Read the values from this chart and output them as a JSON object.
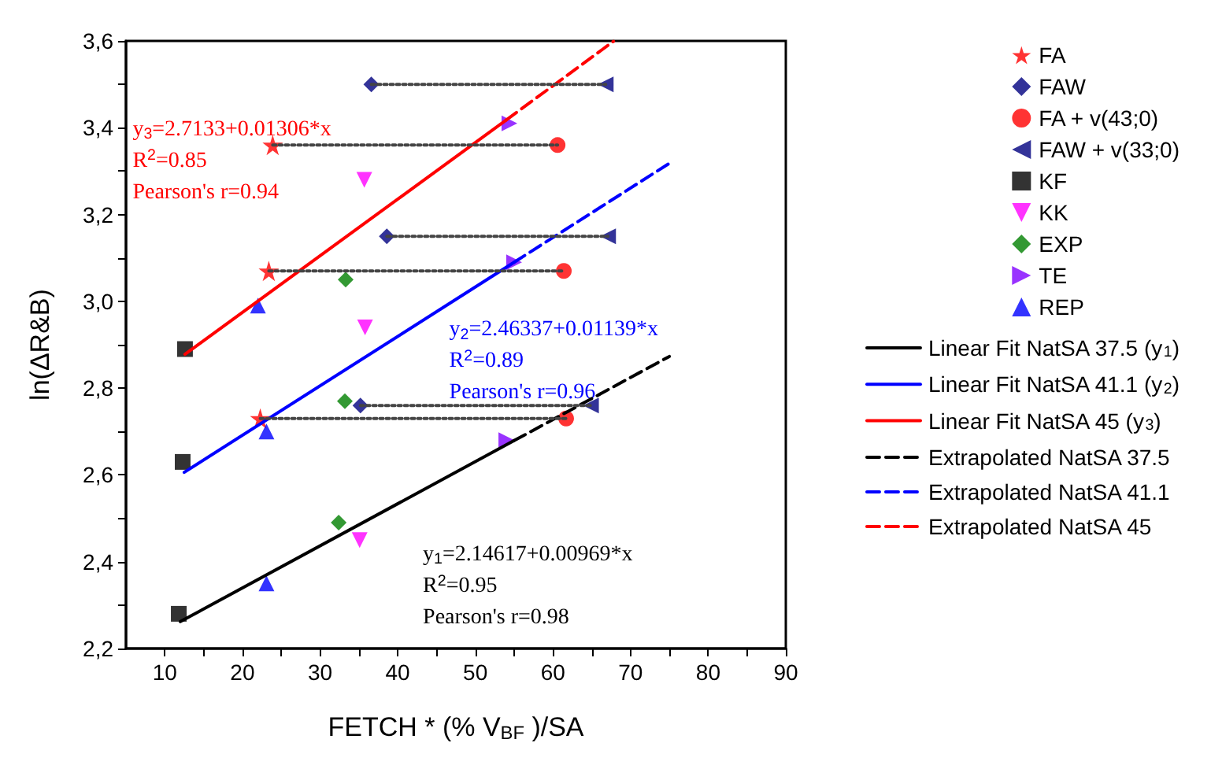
{
  "chart_data": {
    "type": "scatter",
    "xlabel": "FETCH * (% V$_{BF}$ )/SA",
    "ylabel": "ln(ΔR&B)",
    "xlim": [
      5,
      90
    ],
    "xticks": [
      10,
      {
        "value": 15,
        "label": null
      },
      20,
      {
        "value": 25,
        "label": null
      },
      30,
      {
        "value": 35,
        "label": null
      },
      40,
      {
        "value": 45,
        "label": null
      },
      50,
      {
        "value": 55,
        "label": null
      },
      60,
      {
        "value": 65,
        "label": null
      },
      70,
      {
        "value": 75,
        "label": null
      },
      80,
      {
        "value": 85,
        "label": null
      },
      90
    ],
    "ylim": [
      2.2,
      3.6
    ],
    "yticks": [
      {
        "value": 2.2,
        "label": "2,2"
      },
      {
        "value": 2.3,
        "label": null
      },
      {
        "value": 2.4,
        "label": "2,4"
      },
      {
        "value": 2.5,
        "label": null
      },
      {
        "value": 2.6,
        "label": "2,6"
      },
      {
        "value": 2.7,
        "label": null
      },
      {
        "value": 2.8,
        "label": "2,8"
      },
      {
        "value": 2.9,
        "label": null
      },
      {
        "value": 3.0,
        "label": "3,0"
      },
      {
        "value": 3.1,
        "label": null
      },
      {
        "value": 3.2,
        "label": "3,2"
      },
      {
        "value": 3.3,
        "label": null
      },
      {
        "value": 3.4,
        "label": "3,4"
      },
      {
        "value": 3.5,
        "label": null
      },
      {
        "value": 3.6,
        "label": "3,6"
      }
    ],
    "grid": false,
    "legend": "right",
    "series": [
      {
        "name": "FA",
        "color": "#ff0000",
        "marker": "star",
        "x": [
          23.9,
          23.4,
          22.3
        ],
        "values": [
          3.36,
          3.07,
          2.73
        ]
      },
      {
        "name": "FAW",
        "color": "#000080",
        "marker": "diamond",
        "x": [
          36.6,
          38.6,
          35.2
        ],
        "values": [
          3.5,
          3.15,
          2.76
        ]
      },
      {
        "name": "FA + v(43;0)",
        "color": "#ff0000",
        "marker": "circle",
        "x": [
          60.6,
          61.4,
          61.7
        ],
        "values": [
          3.36,
          3.07,
          2.73
        ]
      },
      {
        "name": "FAW + v(33;0)",
        "color": "#000080",
        "marker": "triangle-left",
        "x": [
          66.8,
          67.1,
          64.9
        ],
        "values": [
          3.5,
          3.15,
          2.76
        ]
      },
      {
        "name": "KF",
        "color": "#000000",
        "marker": "square",
        "x": [
          12.6,
          12.3,
          11.8
        ],
        "values": [
          2.89,
          2.63,
          2.28
        ]
      },
      {
        "name": "KK",
        "color": "#ff00ff",
        "marker": "triangle-down",
        "x": [
          35.7,
          35.8,
          35.1
        ],
        "values": [
          3.28,
          2.94,
          2.45
        ]
      },
      {
        "name": "EXP",
        "color": "#008000",
        "marker": "diamond",
        "x": [
          33.3,
          33.2,
          32.4
        ],
        "values": [
          3.05,
          2.77,
          2.49
        ]
      },
      {
        "name": "TE",
        "color": "#8000ff",
        "marker": "triangle-right",
        "x": [
          54.4,
          55.0,
          54.0
        ],
        "values": [
          3.41,
          3.09,
          2.68
        ]
      },
      {
        "name": "REP",
        "color": "#0000ff",
        "marker": "triangle",
        "x": [
          22.0,
          23.1,
          23.1
        ],
        "values": [
          2.99,
          2.7,
          2.35
        ]
      },
      {
        "name": "Linear Fit NatSA 37.5 (y$_{1}$)",
        "type": "line",
        "color": "#000000",
        "marker": "none",
        "line_style": "solid",
        "x": [
          12,
          55
        ],
        "values": [
          2.262,
          2.679
        ]
      },
      {
        "name": "Linear Fit NatSA 41.1 (y$_{2}$)",
        "type": "line",
        "color": "#0000ff",
        "marker": "none",
        "line_style": "solid",
        "x": [
          12.5,
          55
        ],
        "values": [
          2.606,
          3.09
        ]
      },
      {
        "name": "Linear Fit NatSA 45 (y$_{3}$)",
        "type": "line",
        "color": "#ff0000",
        "marker": "none",
        "line_style": "solid",
        "x": [
          12.6,
          54
        ],
        "values": [
          2.878,
          3.418
        ]
      },
      {
        "name": "Extrapolated NatSA 37.5",
        "type": "line",
        "color": "#000000",
        "marker": "none",
        "line_style": "dashed",
        "x": [
          55,
          75
        ],
        "values": [
          2.679,
          2.873
        ]
      },
      {
        "name": "Extrapolated NatSA 41.1",
        "type": "line",
        "color": "#0000ff",
        "marker": "none",
        "line_style": "dashed",
        "x": [
          55,
          75
        ],
        "values": [
          3.09,
          3.318
        ]
      },
      {
        "name": "Extrapolated NatSA 45",
        "type": "line",
        "color": "#ff0000",
        "marker": "none",
        "line_style": "dashed",
        "x": [
          54,
          67.8
        ],
        "values": [
          3.418,
          3.599
        ]
      },
      {
        "type": "line",
        "color": "#444444",
        "marker": "none",
        "line_style": "dotted",
        "x": [
          36.6,
          66.8
        ],
        "values": [
          3.5,
          3.5
        ]
      },
      {
        "type": "line",
        "color": "#444444",
        "marker": "none",
        "line_style": "dotted",
        "x": [
          23.9,
          60.6
        ],
        "values": [
          3.36,
          3.36
        ]
      },
      {
        "type": "line",
        "color": "#444444",
        "marker": "none",
        "line_style": "dotted",
        "x": [
          38.6,
          67.1
        ],
        "values": [
          3.15,
          3.15
        ]
      },
      {
        "type": "line",
        "color": "#444444",
        "marker": "none",
        "line_style": "dotted",
        "x": [
          23.4,
          61.4
        ],
        "values": [
          3.07,
          3.07
        ]
      },
      {
        "type": "line",
        "color": "#444444",
        "marker": "none",
        "line_style": "dotted",
        "x": [
          35.2,
          64.9
        ],
        "values": [
          2.76,
          2.76
        ]
      },
      {
        "type": "line",
        "color": "#444444",
        "marker": "none",
        "line_style": "dotted",
        "x": [
          22.3,
          61.7
        ],
        "values": [
          2.73,
          2.73
        ]
      }
    ],
    "annotations": [
      "y$_{1}$=2.14617+0.00969*x\nR$^{2}$=0.95\nPearson's r=0.98",
      "y$_{2}$=2.46337+0.01139*x\nR$^{2}$=0.89\nPearson's r=0.96",
      "y$_{3}$=2.7133+0.01306*x\nR$^{2}$=0.85\nPearson's r=0.94"
    ]
  }
}
